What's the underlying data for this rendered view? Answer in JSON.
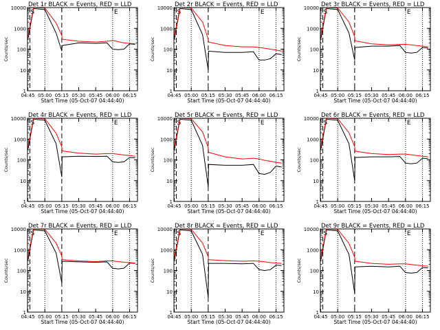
{
  "colors": {
    "events": "#000000",
    "lld": "#ff0000",
    "axis": "#000000",
    "background": "#ffffff"
  },
  "chart_data": [
    {
      "type": "line",
      "title": "Det 1r BLACK = Events, RED = LLD",
      "xlabel": "Start Time (05-Oct-07 04:44:40)",
      "ylabel": "Counts/sec",
      "x_ticks": [
        "04:45",
        "05:00",
        "05:15",
        "05:30",
        "05:45",
        "06:00",
        "06:15"
      ],
      "y_ticks": [
        "1",
        "10",
        "100",
        "1000",
        "10000"
      ],
      "ylim": [
        1,
        10000
      ],
      "log_y": true,
      "dashed_markers": [
        "04:45",
        "05:15"
      ],
      "dotted_markers": [
        "05:00",
        "06:00",
        "06:15"
      ],
      "flag_labels": [
        "S",
        "E"
      ],
      "x": [
        "04:45",
        "04:50",
        "05:00",
        "05:10",
        "05:15",
        "05:15",
        "05:30",
        "05:45",
        "05:55",
        "06:00",
        "06:05",
        "06:10",
        "06:15",
        "06:20"
      ],
      "series": [
        {
          "name": "Events",
          "values": [
            300,
            9000,
            8000,
            600,
            80,
            150,
            200,
            190,
            200,
            100,
            95,
            100,
            180,
            170
          ]
        },
        {
          "name": "LLD",
          "values": [
            400,
            10000,
            9500,
            1800,
            450,
            300,
            240,
            220,
            240,
            260,
            230,
            200,
            190,
            180
          ]
        }
      ]
    },
    {
      "type": "line",
      "title": "Det 2r BLACK = Events, RED = LLD",
      "xlabel": "Start Time (05-Oct-07 04:44:40)",
      "ylabel": "Counts/sec",
      "x_ticks": [
        "04:45",
        "05:00",
        "05:15",
        "05:30",
        "05:45",
        "06:00",
        "06:15"
      ],
      "y_ticks": [
        "1",
        "10",
        "100",
        "1000",
        "10000"
      ],
      "ylim": [
        1,
        10000
      ],
      "log_y": true,
      "dashed_markers": [
        "04:45",
        "05:15"
      ],
      "dotted_markers": [
        "05:00",
        "06:00",
        "06:15"
      ],
      "flag_labels": [
        "S",
        "E"
      ],
      "x": [
        "04:45",
        "04:50",
        "05:00",
        "05:10",
        "05:15",
        "05:15",
        "05:30",
        "05:45",
        "05:55",
        "06:00",
        "06:05",
        "06:10",
        "06:15",
        "06:20"
      ],
      "series": [
        {
          "name": "Events",
          "values": [
            300,
            9000,
            8000,
            500,
            10,
            80,
            70,
            70,
            75,
            30,
            30,
            35,
            60,
            55
          ]
        },
        {
          "name": "LLD",
          "values": [
            400,
            10000,
            9500,
            2000,
            300,
            220,
            150,
            130,
            130,
            120,
            110,
            100,
            90,
            80
          ]
        }
      ]
    },
    {
      "type": "line",
      "title": "Det 3r BLACK = Events, RED = LLD",
      "xlabel": "Start Time (05-Oct-07 04:44:40)",
      "ylabel": "Counts/sec",
      "x_ticks": [
        "04:45",
        "05:00",
        "05:15",
        "05:30",
        "05:45",
        "06:00",
        "06:15"
      ],
      "y_ticks": [
        "1",
        "10",
        "100",
        "1000",
        "10000"
      ],
      "ylim": [
        1,
        10000
      ],
      "log_y": true,
      "dashed_markers": [
        "04:45",
        "05:15"
      ],
      "dotted_markers": [
        "05:00",
        "06:00",
        "06:15"
      ],
      "flag_labels": [
        "S",
        "E"
      ],
      "x": [
        "04:45",
        "04:50",
        "05:00",
        "05:10",
        "05:15",
        "05:15",
        "05:30",
        "05:45",
        "05:55",
        "06:00",
        "06:05",
        "06:10",
        "06:15",
        "06:20"
      ],
      "series": [
        {
          "name": "Events",
          "values": [
            300,
            9000,
            8000,
            600,
            30,
            120,
            140,
            140,
            150,
            70,
            65,
            70,
            120,
            115
          ]
        },
        {
          "name": "LLD",
          "values": [
            400,
            10000,
            9500,
            2000,
            400,
            250,
            180,
            160,
            170,
            170,
            160,
            150,
            140,
            130
          ]
        }
      ]
    },
    {
      "type": "line",
      "title": "Det 4r BLACK = Events, RED = LLD",
      "xlabel": "Start Time (05-Oct-07 04:44:40)",
      "ylabel": "Counts/sec",
      "x_ticks": [
        "04:45",
        "05:00",
        "05:15",
        "05:30",
        "05:45",
        "06:00",
        "06:15"
      ],
      "y_ticks": [
        "1",
        "10",
        "100",
        "1000",
        "10000"
      ],
      "ylim": [
        1,
        10000
      ],
      "log_y": true,
      "dashed_markers": [
        "04:45",
        "05:15"
      ],
      "dotted_markers": [
        "05:00",
        "06:00",
        "06:15"
      ],
      "flag_labels": [
        "S",
        "E"
      ],
      "x": [
        "04:45",
        "04:50",
        "05:00",
        "05:10",
        "05:15",
        "05:15",
        "05:30",
        "05:45",
        "05:55",
        "06:00",
        "06:05",
        "06:10",
        "06:15",
        "06:20"
      ],
      "series": [
        {
          "name": "Events",
          "values": [
            300,
            9000,
            8000,
            600,
            15,
            140,
            150,
            145,
            150,
            80,
            75,
            80,
            130,
            125
          ]
        },
        {
          "name": "LLD",
          "values": [
            400,
            10000,
            9500,
            1900,
            420,
            270,
            210,
            190,
            200,
            200,
            185,
            170,
            160,
            150
          ]
        }
      ]
    },
    {
      "type": "line",
      "title": "Det 5r BLACK = Events, RED = LLD",
      "xlabel": "Start Time (05-Oct-07 04:44:40)",
      "ylabel": "Counts/sec",
      "x_ticks": [
        "04:45",
        "05:00",
        "05:15",
        "05:30",
        "05:45",
        "06:00",
        "06:15"
      ],
      "y_ticks": [
        "1",
        "10",
        "100",
        "1000",
        "10000"
      ],
      "ylim": [
        1,
        10000
      ],
      "log_y": true,
      "dashed_markers": [
        "04:45",
        "05:15"
      ],
      "dotted_markers": [
        "05:00",
        "06:00",
        "06:15"
      ],
      "flag_labels": [
        "S",
        "E"
      ],
      "x": [
        "04:45",
        "04:50",
        "05:00",
        "05:10",
        "05:15",
        "05:15",
        "05:30",
        "05:45",
        "05:55",
        "06:00",
        "06:05",
        "06:10",
        "06:15",
        "06:20"
      ],
      "series": [
        {
          "name": "Events",
          "values": [
            300,
            9000,
            8000,
            500,
            5,
            60,
            55,
            55,
            60,
            22,
            20,
            25,
            50,
            45
          ]
        },
        {
          "name": "LLD",
          "values": [
            400,
            10000,
            9500,
            2200,
            380,
            230,
            140,
            110,
            120,
            110,
            95,
            85,
            75,
            70
          ]
        }
      ]
    },
    {
      "type": "line",
      "title": "Det 6r BLACK = Events, RED = LLD",
      "xlabel": "Start Time (05-Oct-07 04:44:40)",
      "ylabel": "Counts/sec",
      "x_ticks": [
        "04:45",
        "05:00",
        "05:15",
        "05:30",
        "05:45",
        "06:00",
        "06:15"
      ],
      "y_ticks": [
        "1",
        "10",
        "100",
        "1000",
        "10000"
      ],
      "ylim": [
        1,
        10000
      ],
      "log_y": true,
      "dashed_markers": [
        "04:45",
        "05:15"
      ],
      "dotted_markers": [
        "05:00",
        "06:00",
        "06:15"
      ],
      "flag_labels": [
        "S",
        "E"
      ],
      "x": [
        "04:45",
        "04:50",
        "05:00",
        "05:10",
        "05:15",
        "05:15",
        "05:30",
        "05:45",
        "05:55",
        "06:00",
        "06:05",
        "06:10",
        "06:15",
        "06:20"
      ],
      "series": [
        {
          "name": "Events",
          "values": [
            300,
            9000,
            8000,
            600,
            10,
            130,
            140,
            140,
            145,
            70,
            65,
            70,
            120,
            115
          ]
        },
        {
          "name": "LLD",
          "values": [
            400,
            10000,
            9500,
            2000,
            420,
            260,
            200,
            180,
            190,
            190,
            175,
            160,
            150,
            140
          ]
        }
      ]
    },
    {
      "type": "line",
      "title": "Det 7r BLACK = Events, RED = LLD",
      "xlabel": "Start Time (05-Oct-07 04:44:40)",
      "ylabel": "Counts/sec",
      "x_ticks": [
        "04:45",
        "05:00",
        "05:15",
        "05:30",
        "05:45",
        "06:00",
        "06:15"
      ],
      "y_ticks": [
        "1",
        "10",
        "100",
        "1000",
        "10000"
      ],
      "ylim": [
        1,
        10000
      ],
      "log_y": true,
      "dashed_markers": [
        "04:45",
        "05:15"
      ],
      "dotted_markers": [
        "05:00",
        "06:00",
        "06:15"
      ],
      "flag_labels": [
        "S",
        "E"
      ],
      "x": [
        "04:45",
        "04:50",
        "05:00",
        "05:10",
        "05:15",
        "05:15",
        "05:30",
        "05:45",
        "05:55",
        "06:00",
        "06:05",
        "06:10",
        "06:15",
        "06:20"
      ],
      "series": [
        {
          "name": "Events",
          "values": [
            300,
            9000,
            8000,
            700,
            25,
            280,
            260,
            250,
            260,
            130,
            120,
            130,
            230,
            220
          ]
        },
        {
          "name": "LLD",
          "values": [
            400,
            10000,
            9500,
            2100,
            500,
            330,
            290,
            270,
            290,
            290,
            270,
            250,
            240,
            230
          ]
        }
      ]
    },
    {
      "type": "line",
      "title": "Det 8r BLACK = Events, RED = LLD",
      "xlabel": "Start Time (05-Oct-07 04:44:40)",
      "ylabel": "Counts/sec",
      "x_ticks": [
        "04:45",
        "05:00",
        "05:15",
        "05:30",
        "05:45",
        "06:00",
        "06:15"
      ],
      "y_ticks": [
        "1",
        "10",
        "100",
        "1000",
        "10000"
      ],
      "ylim": [
        1,
        10000
      ],
      "log_y": true,
      "dashed_markers": [
        "04:45",
        "05:15"
      ],
      "dotted_markers": [
        "05:00",
        "06:00",
        "06:15"
      ],
      "flag_labels": [
        "S",
        "E"
      ],
      "x": [
        "04:45",
        "04:50",
        "05:00",
        "05:10",
        "05:15",
        "05:15",
        "05:30",
        "05:45",
        "05:55",
        "06:00",
        "06:05",
        "06:10",
        "06:15",
        "06:20"
      ],
      "series": [
        {
          "name": "Events",
          "values": [
            300,
            9000,
            8000,
            600,
            5,
            220,
            220,
            210,
            220,
            110,
            100,
            110,
            180,
            175
          ]
        },
        {
          "name": "LLD",
          "values": [
            400,
            10000,
            9500,
            2100,
            460,
            330,
            300,
            280,
            290,
            280,
            260,
            240,
            230,
            220
          ]
        }
      ]
    },
    {
      "type": "line",
      "title": "Det 9r BLACK = Events, RED = LLD",
      "xlabel": "Start Time (05-Oct-07 04:44:40)",
      "ylabel": "Counts/sec",
      "x_ticks": [
        "04:45",
        "05:00",
        "05:15",
        "05:30",
        "05:45",
        "06:00",
        "06:15"
      ],
      "y_ticks": [
        "1",
        "10",
        "100",
        "1000",
        "10000"
      ],
      "ylim": [
        1,
        10000
      ],
      "log_y": true,
      "dashed_markers": [
        "04:45",
        "05:15"
      ],
      "dotted_markers": [
        "05:00",
        "06:00",
        "06:15"
      ],
      "flag_labels": [
        "S",
        "E"
      ],
      "x": [
        "04:45",
        "04:50",
        "05:00",
        "05:10",
        "05:15",
        "05:15",
        "05:30",
        "05:45",
        "05:55",
        "06:00",
        "06:05",
        "06:10",
        "06:15",
        "06:20"
      ],
      "series": [
        {
          "name": "Events",
          "values": [
            300,
            9000,
            8000,
            600,
            8,
            150,
            160,
            150,
            160,
            80,
            75,
            80,
            140,
            135
          ]
        },
        {
          "name": "LLD",
          "values": [
            400,
            10000,
            9500,
            2000,
            440,
            280,
            220,
            200,
            210,
            210,
            195,
            180,
            170,
            160
          ]
        }
      ]
    }
  ]
}
